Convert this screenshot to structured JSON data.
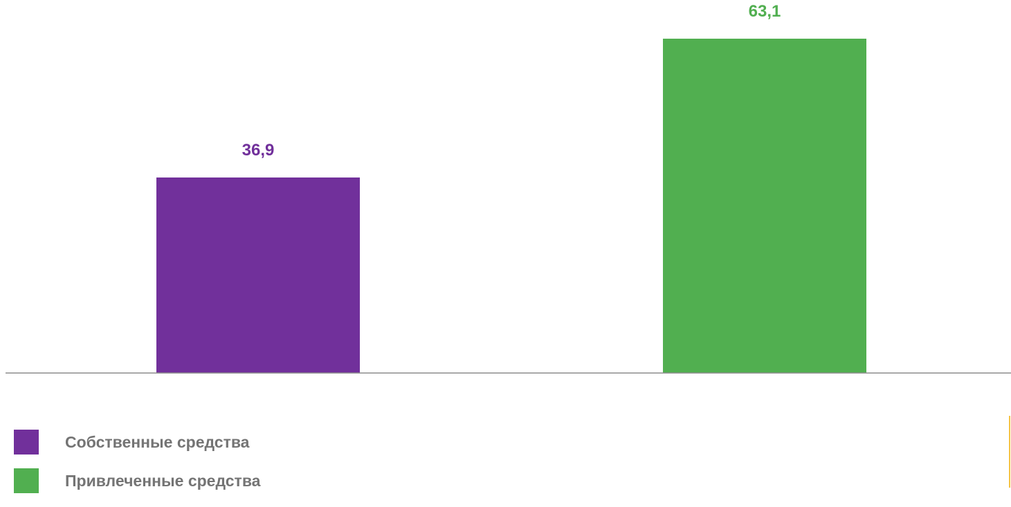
{
  "chart_data": {
    "type": "bar",
    "categories": [
      "Собственные средства",
      "Привлеченные средства"
    ],
    "values": [
      36.9,
      63.1
    ],
    "value_labels": [
      "36,9",
      "63,1"
    ],
    "colors": [
      "#71309b",
      "#51af50"
    ],
    "ylim": [
      0,
      63.1
    ],
    "grid": false,
    "legend_position": "bottom-left"
  },
  "legend": {
    "items": [
      {
        "label": "Собственные средства",
        "color": "#71309b"
      },
      {
        "label": "Привлеченные средства",
        "color": "#51af50"
      }
    ]
  },
  "accent_rule_color": "#f5c242",
  "axis_color": "#8c8c8c"
}
